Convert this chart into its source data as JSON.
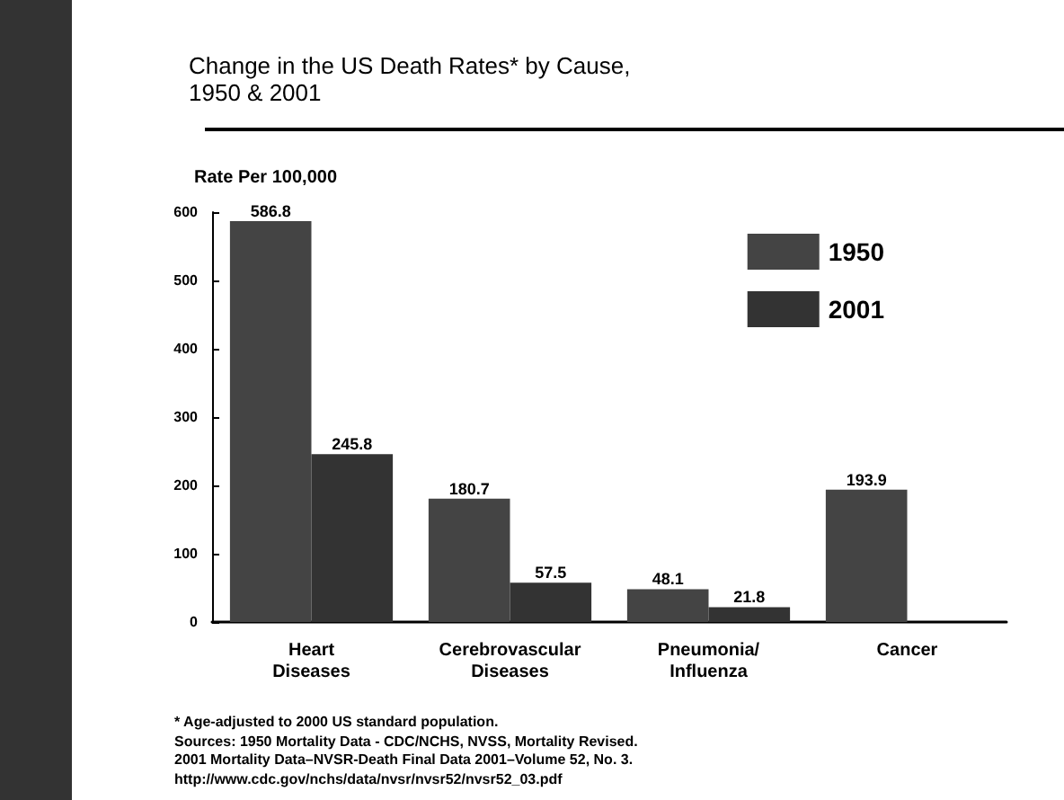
{
  "chart_data": {
    "type": "bar",
    "title": "Change in the US Death Rates* by Cause,\n1950 & 2001",
    "ylabel": "Rate Per 100,000",
    "categories": [
      "Heart\nDiseases",
      "Cerebrovascular\nDiseases",
      "Pneumonia/\nInfluenza",
      "Cancer"
    ],
    "series": [
      {
        "name": "1950",
        "color": "#444444",
        "values": [
          586.8,
          180.7,
          48.1,
          193.9
        ]
      },
      {
        "name": "2001",
        "color": "#333333",
        "values": [
          245.8,
          57.5,
          21.8,
          null
        ]
      }
    ],
    "ylim": [
      0,
      600
    ],
    "yticks": [
      0,
      100,
      200,
      300,
      400,
      500,
      600
    ],
    "grid": false,
    "legend": "top right",
    "data_labels": true,
    "annotations": [
      "* Age-adjusted to 2000 US standard population.",
      "Sources: 1950 Mortality Data - CDC/NCHS, NVSS, Mortality Revised.",
      "2001 Mortality Data–NVSR-Death Final Data 2001–Volume 52, No. 3.",
      "http://www.cdc.gov/nchs/data/nvsr/nvsr52/nvsr52_03.pdf"
    ]
  }
}
